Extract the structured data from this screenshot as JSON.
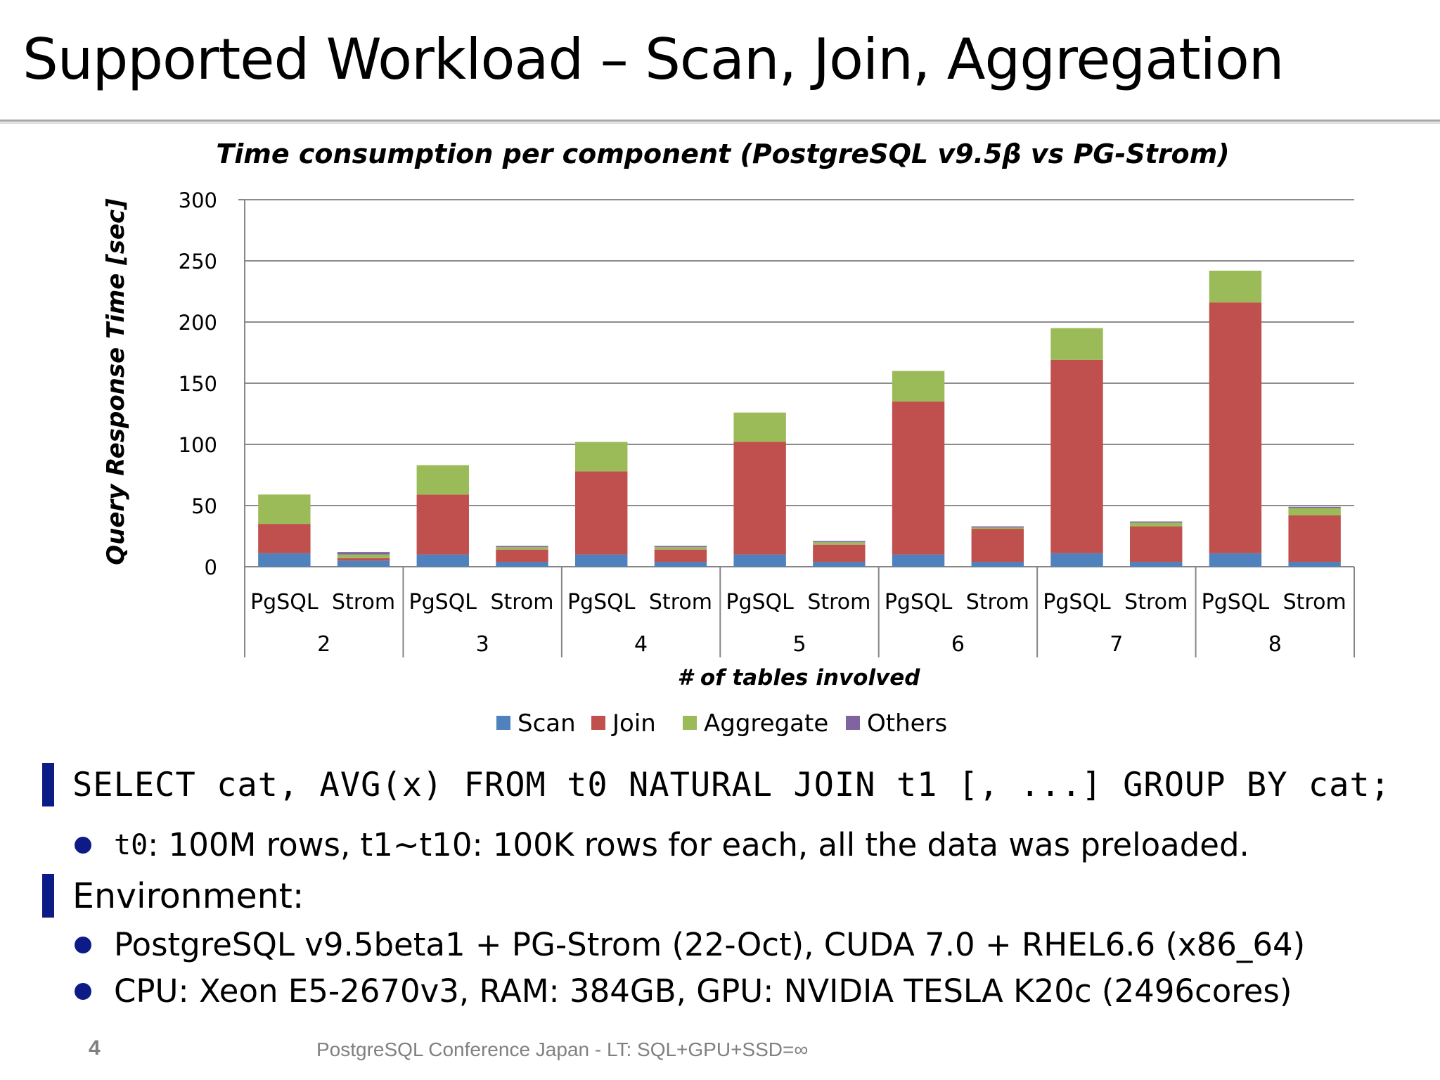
{
  "slide": {
    "title": "Supported Workload – Scan, Join, Aggregation",
    "page_number": "4",
    "footer": "PostgreSQL Conference Japan - LT: SQL+GPU+SSD=∞"
  },
  "bullets": {
    "query": "SELECT cat, AVG(x) FROM t0 NATURAL JOIN t1 [, ...] GROUP BY cat;",
    "query_detail_code": "t0",
    "query_detail_text": ": 100M rows, t1~t10: 100K rows for each, all the data was preloaded.",
    "environment": "Environment:",
    "env_items": [
      "PostgreSQL v9.5beta1 + PG-Strom (22-Oct), CUDA 7.0 + RHEL6.6 (x86_64)",
      "CPU: Xeon E5-2670v3, RAM: 384GB, GPU: NVIDIA TESLA K20c (2496cores)"
    ]
  },
  "chart_data": {
    "type": "bar",
    "stacked": true,
    "title": "Time consumption per component (PostgreSQL v9.5β vs PG-Strom)",
    "xlabel": "# of tables involved",
    "ylabel": "Query Response Time [sec]",
    "ylim": [
      0,
      300
    ],
    "yticks": [
      0,
      50,
      100,
      150,
      200,
      250,
      300
    ],
    "grid": true,
    "legend_position": "bottom",
    "groups": [
      "2",
      "3",
      "4",
      "5",
      "6",
      "7",
      "8"
    ],
    "categories": [
      "PgSQL",
      "Strom",
      "PgSQL",
      "Strom",
      "PgSQL",
      "Strom",
      "PgSQL",
      "Strom",
      "PgSQL",
      "Strom",
      "PgSQL",
      "Strom",
      "PgSQL",
      "Strom"
    ],
    "series": [
      {
        "name": "Scan",
        "color": "#4f81bd",
        "values": [
          11,
          5,
          10,
          4,
          10,
          4,
          10,
          4,
          10,
          4,
          11,
          4,
          11,
          4
        ]
      },
      {
        "name": "Join",
        "color": "#c0504d",
        "values": [
          24,
          2,
          49,
          10,
          68,
          10,
          92,
          14,
          125,
          27,
          158,
          29,
          205,
          38
        ]
      },
      {
        "name": "Aggregate",
        "color": "#9bbb59",
        "values": [
          24,
          3,
          24,
          2,
          24,
          2,
          24,
          2,
          25,
          1,
          26,
          3,
          26,
          6
        ]
      },
      {
        "name": "Others",
        "color": "#8064a2",
        "values": [
          0,
          2,
          0,
          1,
          0,
          1,
          0,
          1,
          0,
          1,
          0,
          1,
          0,
          1
        ]
      }
    ]
  }
}
